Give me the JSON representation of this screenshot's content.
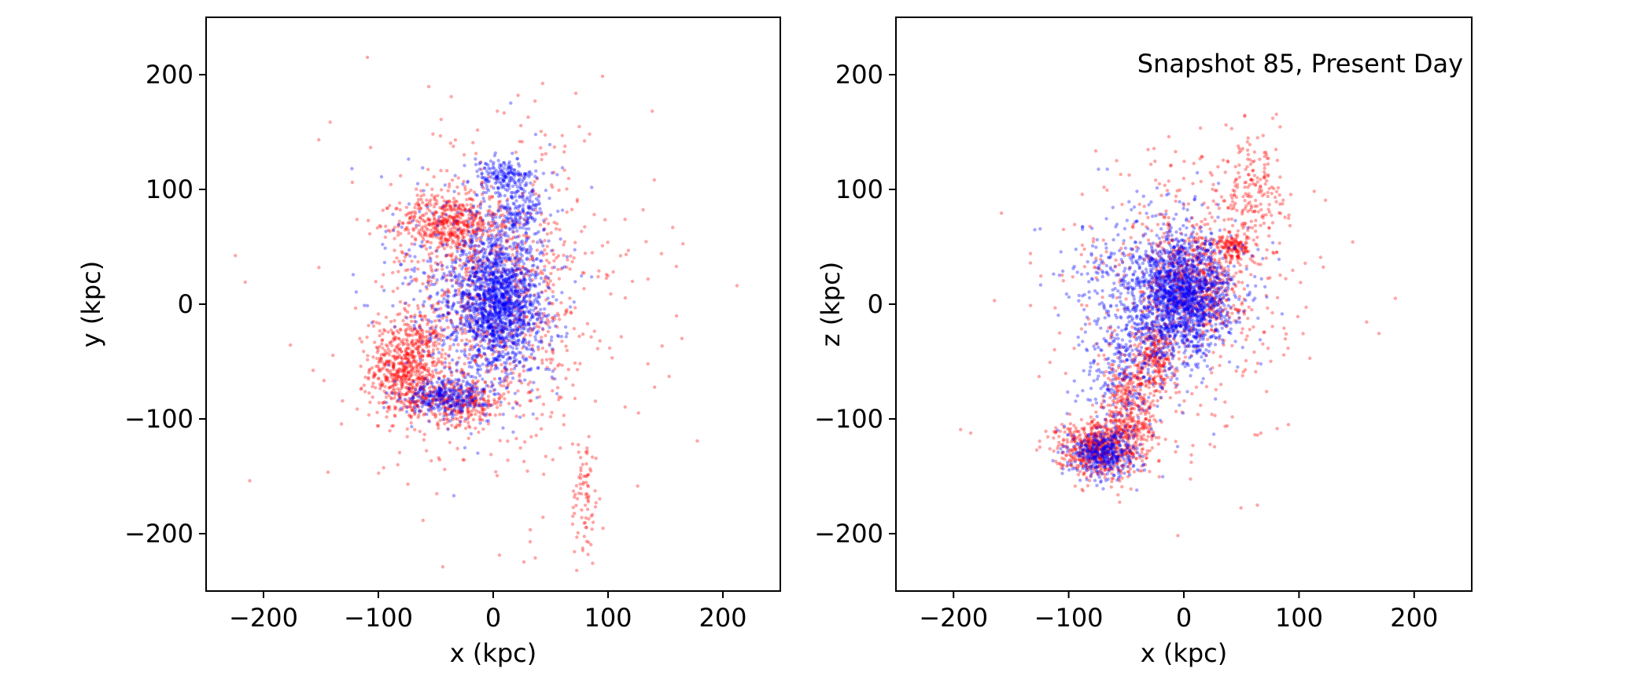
{
  "figure": {
    "background": "#ffffff"
  },
  "chart_data": [
    {
      "type": "scatter",
      "title": "",
      "xlabel": "x (kpc)",
      "ylabel": "y (kpc)",
      "xlim": [
        -250,
        250
      ],
      "ylim": [
        -250,
        250
      ],
      "xticks": [
        -200,
        -100,
        0,
        100,
        200
      ],
      "yticks": [
        -200,
        -100,
        0,
        100,
        200
      ],
      "xtick_labels": [
        "−200",
        "−100",
        "0",
        "100",
        "200"
      ],
      "ytick_labels": [
        "−200",
        "−100",
        "0",
        "100",
        "200"
      ],
      "grid": false,
      "annotation": "",
      "series": [
        {
          "color": "#ff0000",
          "clusters": [
            {
              "center": [
                -75,
                -55
              ],
              "spread": [
                16,
                22
              ],
              "weight": 0.25
            },
            {
              "center": [
                -40,
                70
              ],
              "spread": [
                22,
                12
              ],
              "weight": 0.18
            },
            {
              "center": [
                -30,
                -85
              ],
              "spread": [
                22,
                10
              ],
              "weight": 0.12
            },
            {
              "center": [
                0,
                10
              ],
              "spread": [
                40,
                55
              ],
              "weight": 0.3
            },
            {
              "center": [
                80,
                -170
              ],
              "spread": [
                6,
                30
              ],
              "weight": 0.03
            },
            {
              "center": [
                0,
                0
              ],
              "spread": [
                70,
                90
              ],
              "weight": 0.12
            }
          ]
        },
        {
          "color": "#0000ff",
          "clusters": [
            {
              "center": [
                5,
                0
              ],
              "spread": [
                18,
                28
              ],
              "weight": 0.5
            },
            {
              "center": [
                10,
                110
              ],
              "spread": [
                14,
                8
              ],
              "weight": 0.08
            },
            {
              "center": [
                25,
                80
              ],
              "spread": [
                10,
                10
              ],
              "weight": 0.05
            },
            {
              "center": [
                -40,
                -80
              ],
              "spread": [
                18,
                8
              ],
              "weight": 0.12
            },
            {
              "center": [
                -10,
                10
              ],
              "spread": [
                35,
                50
              ],
              "weight": 0.25
            }
          ]
        }
      ]
    },
    {
      "type": "scatter",
      "title": "",
      "xlabel": "x (kpc)",
      "ylabel": "z (kpc)",
      "xlim": [
        -250,
        250
      ],
      "ylim": [
        -250,
        250
      ],
      "xticks": [
        -200,
        -100,
        0,
        100,
        200
      ],
      "yticks": [
        -200,
        -100,
        0,
        100,
        200
      ],
      "xtick_labels": [
        "−200",
        "−100",
        "0",
        "100",
        "200"
      ],
      "ytick_labels": [
        "−200",
        "−100",
        "0",
        "100",
        "200"
      ],
      "grid": false,
      "annotation": "Snapshot 85, Present Day",
      "series": [
        {
          "color": "#ff0000",
          "clusters": [
            {
              "center": [
                -75,
                -125
              ],
              "spread": [
                18,
                12
              ],
              "weight": 0.25
            },
            {
              "center": [
                -45,
                -90
              ],
              "spread": [
                12,
                25
              ],
              "weight": 0.15
            },
            {
              "center": [
                -25,
                -45
              ],
              "spread": [
                8,
                15
              ],
              "weight": 0.08
            },
            {
              "center": [
                10,
                20
              ],
              "spread": [
                20,
                25
              ],
              "weight": 0.25
            },
            {
              "center": [
                60,
                100
              ],
              "spread": [
                15,
                25
              ],
              "weight": 0.07
            },
            {
              "center": [
                45,
                50
              ],
              "spread": [
                8,
                6
              ],
              "weight": 0.05
            },
            {
              "center": [
                0,
                0
              ],
              "spread": [
                60,
                70
              ],
              "weight": 0.15
            }
          ]
        },
        {
          "color": "#0000ff",
          "clusters": [
            {
              "center": [
                0,
                5
              ],
              "spread": [
                20,
                25
              ],
              "weight": 0.5
            },
            {
              "center": [
                -70,
                -130
              ],
              "spread": [
                14,
                10
              ],
              "weight": 0.15
            },
            {
              "center": [
                -20,
                15
              ],
              "spread": [
                35,
                35
              ],
              "weight": 0.25
            },
            {
              "center": [
                -50,
                -60
              ],
              "spread": [
                20,
                30
              ],
              "weight": 0.1
            }
          ]
        }
      ]
    }
  ]
}
